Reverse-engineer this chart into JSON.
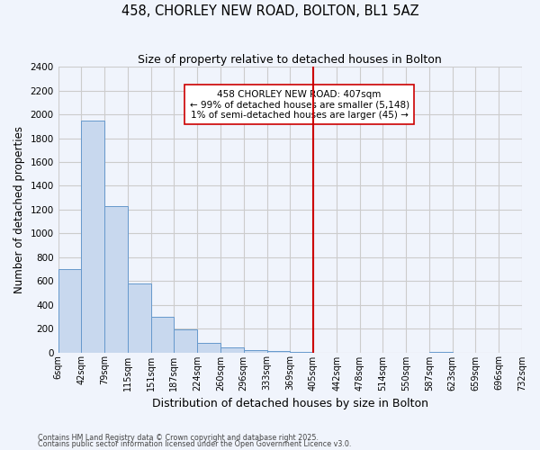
{
  "title": "458, CHORLEY NEW ROAD, BOLTON, BL1 5AZ",
  "subtitle": "Size of property relative to detached houses in Bolton",
  "xlabel": "Distribution of detached houses by size in Bolton",
  "ylabel": "Number of detached properties",
  "bar_color": "#c8d8ee",
  "bar_edge_color": "#6699cc",
  "background_color": "#f0f4fc",
  "grid_color": "#cccccc",
  "bin_edges": [
    6,
    42,
    79,
    115,
    151,
    187,
    224,
    260,
    296,
    333,
    369,
    405,
    442,
    478,
    514,
    550,
    587,
    623,
    659,
    696,
    732
  ],
  "bin_labels": [
    "6sqm",
    "42sqm",
    "79sqm",
    "115sqm",
    "151sqm",
    "187sqm",
    "224sqm",
    "260sqm",
    "296sqm",
    "333sqm",
    "369sqm",
    "405sqm",
    "442sqm",
    "478sqm",
    "514sqm",
    "550sqm",
    "587sqm",
    "623sqm",
    "659sqm",
    "696sqm",
    "732sqm"
  ],
  "bar_heights": [
    700,
    1950,
    1230,
    575,
    300,
    195,
    80,
    40,
    20,
    10,
    5,
    0,
    0,
    0,
    0,
    0,
    5,
    0,
    0,
    0
  ],
  "property_line_x": 405,
  "property_line_color": "#cc0000",
  "ylim": [
    0,
    2400
  ],
  "yticks": [
    0,
    200,
    400,
    600,
    800,
    1000,
    1200,
    1400,
    1600,
    1800,
    2000,
    2200,
    2400
  ],
  "annotation_line1": "458 CHORLEY NEW ROAD: 407sqm",
  "annotation_line2": "← 99% of detached houses are smaller (5,148)",
  "annotation_line3": "1% of semi-detached houses are larger (45) →",
  "footnote1": "Contains HM Land Registry data © Crown copyright and database right 2025.",
  "footnote2": "Contains public sector information licensed under the Open Government Licence v3.0."
}
